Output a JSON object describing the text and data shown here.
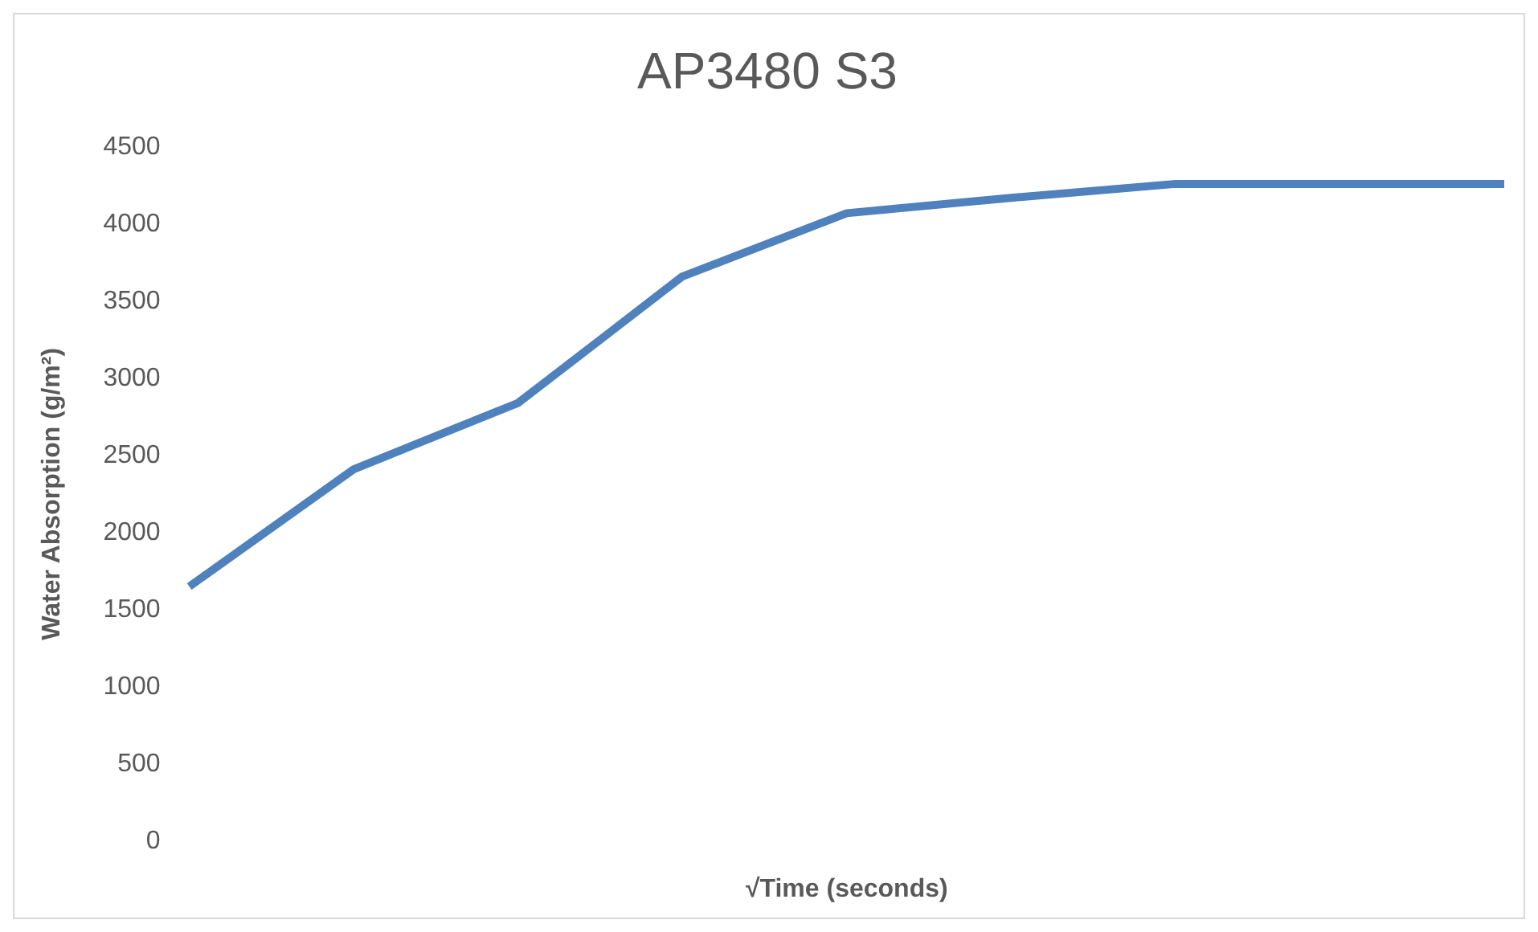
{
  "chart_data": {
    "type": "line",
    "title": "AP3480 S3",
    "xlabel": "√Time (seconds)",
    "ylabel": "Water Absorption (g/m²)",
    "categories": [
      null,
      null,
      null,
      null,
      null,
      null,
      null,
      null,
      null
    ],
    "series": [
      {
        "color": "#4f81bd",
        "values": [
          1650,
          2410,
          2840,
          3660,
          4070,
          4170,
          4260,
          4260,
          4260
        ]
      }
    ],
    "ylim": [
      0,
      4500
    ],
    "yticks": [
      0,
      500,
      1000,
      1500,
      2000,
      2500,
      3000,
      3500,
      4000,
      4500
    ],
    "grid": false,
    "legend": false,
    "marker": "none",
    "line_style": "solid"
  }
}
